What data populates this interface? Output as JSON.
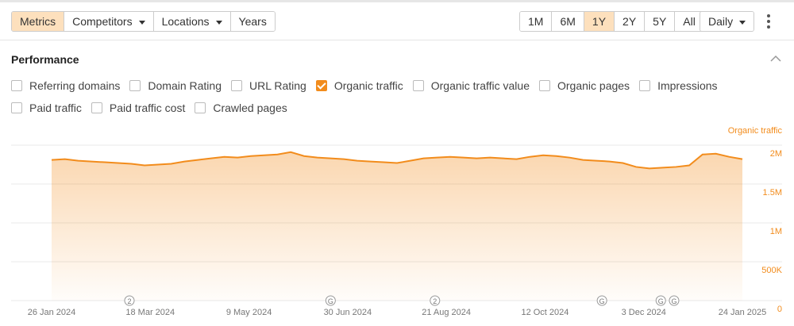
{
  "toolbar": {
    "tabs": [
      {
        "label": "Metrics",
        "active": true
      },
      {
        "label": "Competitors",
        "dropdown": true
      },
      {
        "label": "Locations",
        "dropdown": true
      },
      {
        "label": "Years"
      }
    ],
    "ranges": [
      {
        "label": "1M"
      },
      {
        "label": "6M"
      },
      {
        "label": "1Y",
        "active": true
      },
      {
        "label": "2Y"
      },
      {
        "label": "5Y"
      },
      {
        "label": "All"
      }
    ],
    "interval": "Daily"
  },
  "section": {
    "title": "Performance"
  },
  "metrics": [
    {
      "label": "Referring domains",
      "checked": false
    },
    {
      "label": "Domain Rating",
      "checked": false
    },
    {
      "label": "URL Rating",
      "checked": false
    },
    {
      "label": "Organic traffic",
      "checked": true
    },
    {
      "label": "Organic traffic value",
      "checked": false
    },
    {
      "label": "Organic pages",
      "checked": false
    },
    {
      "label": "Impressions",
      "checked": false
    },
    {
      "label": "Paid traffic",
      "checked": false
    },
    {
      "label": "Paid traffic cost",
      "checked": false
    },
    {
      "label": "Crawled pages",
      "checked": false
    }
  ],
  "chart_data": {
    "type": "area",
    "y_label": "Organic traffic",
    "grid": true,
    "x": [
      "2024-01-26",
      "2024-02-02",
      "2024-02-09",
      "2024-02-16",
      "2024-02-23",
      "2024-03-01",
      "2024-03-08",
      "2024-03-15",
      "2024-03-22",
      "2024-03-29",
      "2024-04-05",
      "2024-04-12",
      "2024-04-19",
      "2024-04-26",
      "2024-05-03",
      "2024-05-10",
      "2024-05-17",
      "2024-05-24",
      "2024-05-31",
      "2024-06-07",
      "2024-06-14",
      "2024-06-21",
      "2024-06-28",
      "2024-07-05",
      "2024-07-12",
      "2024-07-19",
      "2024-07-26",
      "2024-08-02",
      "2024-08-09",
      "2024-08-16",
      "2024-08-23",
      "2024-08-30",
      "2024-09-06",
      "2024-09-13",
      "2024-09-20",
      "2024-09-27",
      "2024-10-04",
      "2024-10-11",
      "2024-10-18",
      "2024-10-25",
      "2024-11-01",
      "2024-11-08",
      "2024-11-15",
      "2024-11-22",
      "2024-11-29",
      "2024-12-06",
      "2024-12-13",
      "2024-12-20",
      "2024-12-27",
      "2025-01-03",
      "2025-01-10",
      "2025-01-17",
      "2025-01-24"
    ],
    "series": [
      {
        "name": "Organic traffic",
        "color": "#f28c1c",
        "values": [
          1810000,
          1820000,
          1800000,
          1790000,
          1780000,
          1770000,
          1760000,
          1740000,
          1750000,
          1760000,
          1790000,
          1810000,
          1830000,
          1850000,
          1840000,
          1860000,
          1870000,
          1880000,
          1910000,
          1860000,
          1840000,
          1830000,
          1820000,
          1800000,
          1790000,
          1780000,
          1770000,
          1800000,
          1830000,
          1840000,
          1850000,
          1840000,
          1830000,
          1840000,
          1830000,
          1820000,
          1850000,
          1870000,
          1860000,
          1840000,
          1810000,
          1800000,
          1790000,
          1770000,
          1720000,
          1700000,
          1710000,
          1720000,
          1740000,
          1880000,
          1890000,
          1850000,
          1820000
        ]
      }
    ],
    "xlim": [
      "2024-01-26",
      "2025-01-24"
    ],
    "xticks": [
      {
        "value": "2024-01-26",
        "label": "26 Jan 2024"
      },
      {
        "value": "2024-03-18",
        "label": "18 Mar 2024"
      },
      {
        "value": "2024-05-09",
        "label": "9 May 2024"
      },
      {
        "value": "2024-06-30",
        "label": "30 Jun 2024"
      },
      {
        "value": "2024-08-21",
        "label": "21 Aug 2024"
      },
      {
        "value": "2024-10-12",
        "label": "12 Oct 2024"
      },
      {
        "value": "2024-12-03",
        "label": "3 Dec 2024"
      },
      {
        "value": "2025-01-24",
        "label": "24 Jan 2025"
      }
    ],
    "ylim": [
      0,
      2000000
    ],
    "yticks": [
      0,
      {
        "value": 500000,
        "label": "500K"
      },
      {
        "value": 1000000,
        "label": "1M"
      },
      {
        "value": 1500000,
        "label": "1.5M"
      },
      {
        "value": 2000000,
        "label": "2M"
      }
    ],
    "annotations": [
      {
        "x": "2024-03-07",
        "label": "2"
      },
      {
        "x": "2024-06-21",
        "label": "G"
      },
      {
        "x": "2024-08-15",
        "label": "2"
      },
      {
        "x": "2024-11-11",
        "label": "G"
      },
      {
        "x": "2024-12-12",
        "label": "G"
      },
      {
        "x": "2024-12-19",
        "label": "G"
      }
    ]
  }
}
